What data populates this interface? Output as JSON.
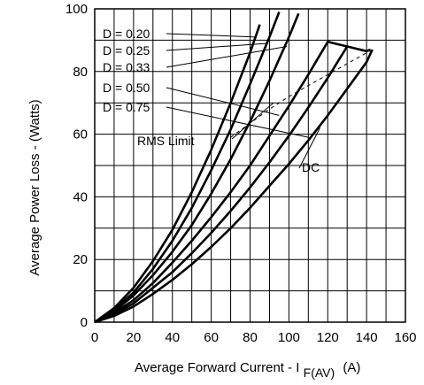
{
  "chart_data": {
    "type": "line",
    "title": "",
    "xlabel_main": "Average Forward Current - I",
    "xlabel_sub": "F(AV)",
    "xlabel_unit": "(A)",
    "ylabel": "Average Power Loss - (Watts)",
    "xlim": [
      0,
      160
    ],
    "ylim": [
      0,
      100
    ],
    "xticks": [
      "0",
      "20",
      "40",
      "60",
      "80",
      "100",
      "120",
      "140",
      "160"
    ],
    "yticks": [
      "0",
      "20",
      "40",
      "60",
      "80",
      "100"
    ],
    "grid": true,
    "series": [
      {
        "name": "D = 0.20",
        "x": [
          0,
          10,
          20,
          30,
          40,
          50,
          60,
          70,
          80,
          85
        ],
        "y": [
          0,
          4.5,
          11,
          19.5,
          29.5,
          41.5,
          55,
          70,
          86,
          95
        ]
      },
      {
        "name": "D = 0.25",
        "x": [
          0,
          10,
          20,
          30,
          40,
          50,
          60,
          70,
          80,
          90,
          95
        ],
        "y": [
          0,
          4,
          9.5,
          17,
          26,
          36.5,
          48.5,
          61.5,
          76,
          91,
          99
        ]
      },
      {
        "name": "D = 0.33",
        "x": [
          0,
          10,
          20,
          30,
          40,
          50,
          60,
          70,
          80,
          90,
          100,
          105
        ],
        "y": [
          0,
          3.5,
          8.5,
          15,
          22.5,
          31,
          41,
          52,
          64,
          77,
          91,
          98.5
        ]
      },
      {
        "name": "D = 0.50",
        "x": [
          0,
          10,
          20,
          30,
          40,
          50,
          60,
          70,
          80,
          90,
          100,
          110,
          120,
          130
        ],
        "y": [
          0,
          3,
          7,
          12.5,
          19,
          26,
          33.5,
          41.5,
          50,
          59.5,
          69,
          79,
          89.5,
          88
        ]
      },
      {
        "name": "D = 0.75",
        "x": [
          0,
          10,
          20,
          30,
          40,
          50,
          60,
          70,
          80,
          90,
          100,
          110,
          120,
          130,
          140,
          142
        ],
        "y": [
          0,
          2.5,
          6,
          11,
          16,
          22,
          28.5,
          35.5,
          43,
          51,
          59.5,
          68.5,
          78,
          88,
          86.5,
          87
        ]
      },
      {
        "name": "DC",
        "x": [
          0,
          10,
          20,
          30,
          40,
          50,
          60,
          70,
          80,
          90,
          100,
          110,
          120,
          130,
          140,
          143
        ],
        "y": [
          0,
          2,
          5,
          9,
          13.5,
          18.5,
          24,
          30,
          36.5,
          43.5,
          50.5,
          58,
          66,
          74.5,
          83,
          87
        ]
      }
    ],
    "rms_limit": {
      "name": "RMS Limit",
      "x": [
        70,
        80,
        90,
        100,
        110,
        120,
        130,
        143
      ],
      "y": [
        59,
        63.5,
        68,
        72,
        75.5,
        79,
        82.5,
        87
      ]
    },
    "labels": {
      "d020": "D = 0.20",
      "d025": "D = 0.25",
      "d033": "D = 0.33",
      "d050": "D = 0.50",
      "d075": "D = 0.75",
      "rms": "RMS Limit",
      "dc": "DC"
    }
  }
}
